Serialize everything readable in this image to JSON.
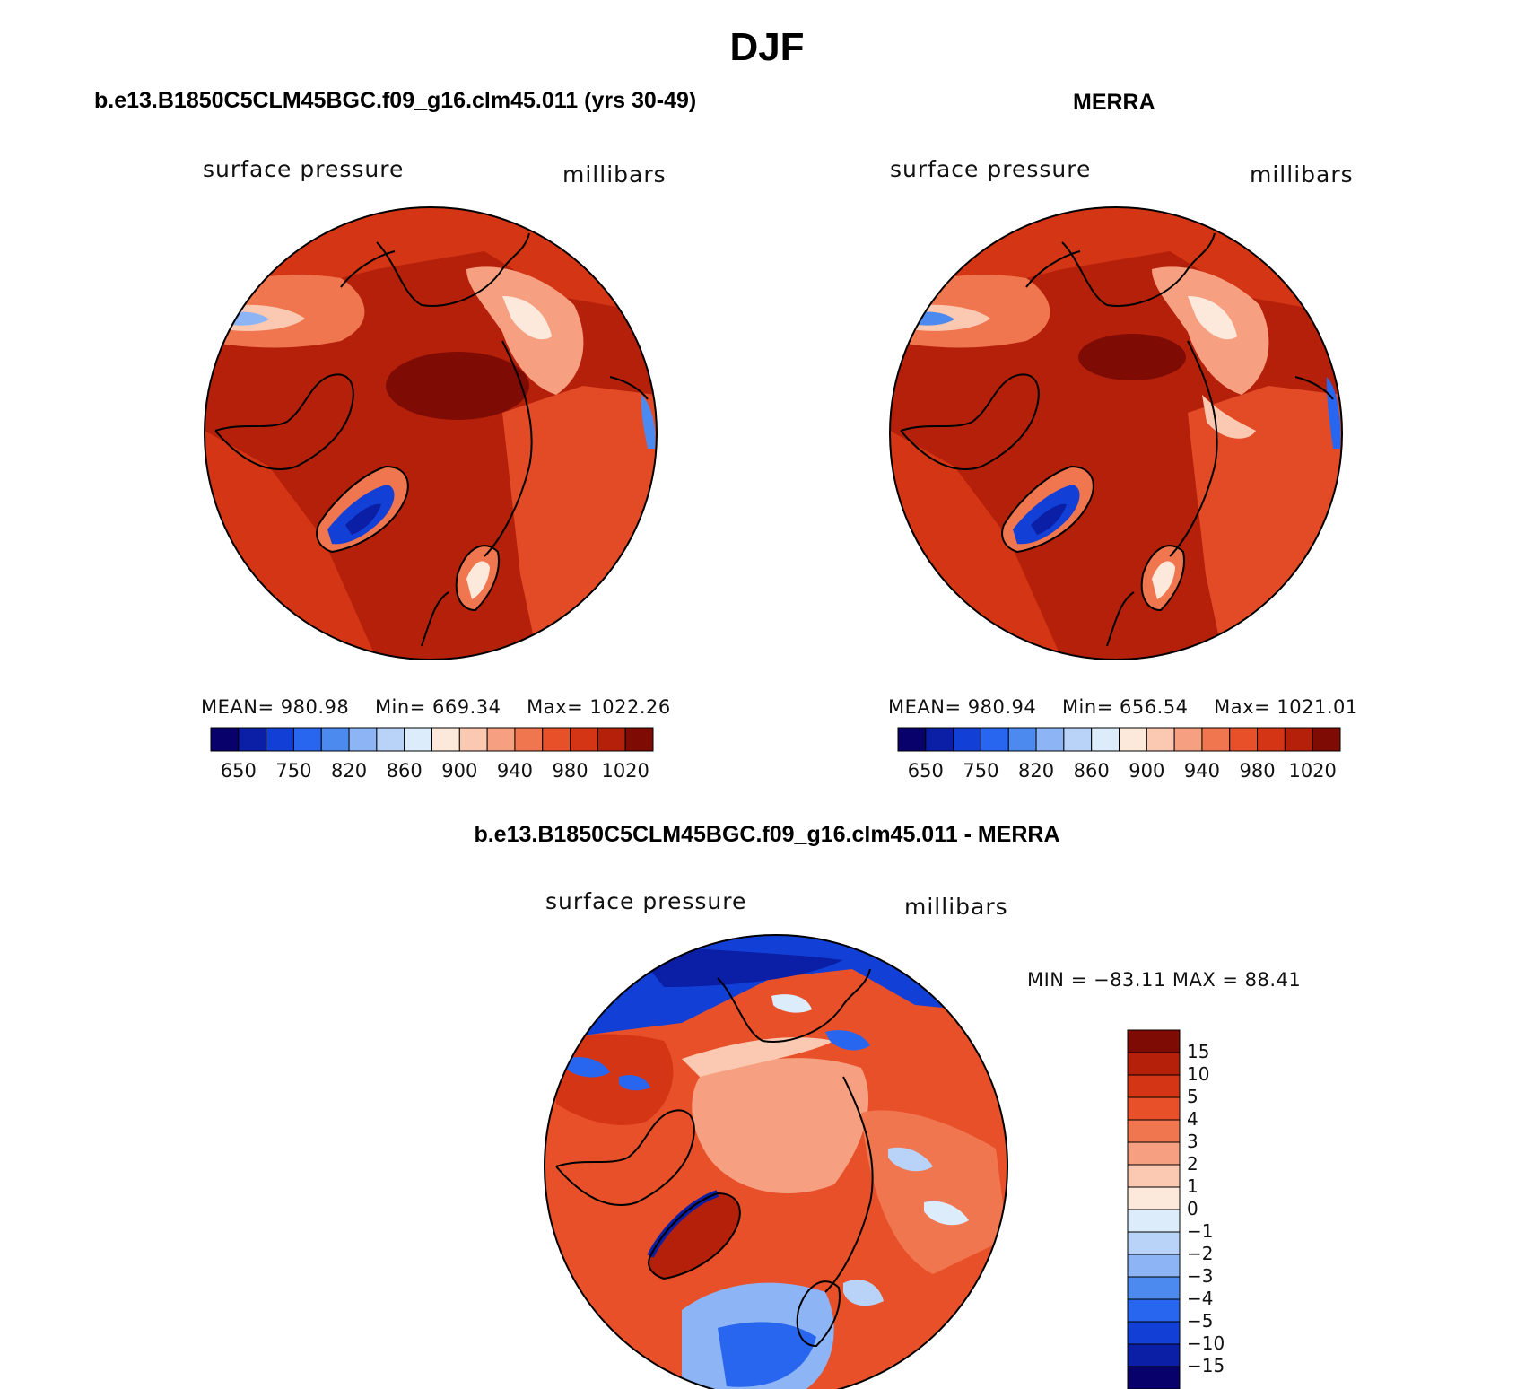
{
  "figure": {
    "title": "DJF"
  },
  "panels": [
    {
      "title": "b.e13.B1850C5CLM45BGC.f09_g16.clm45.011 (yrs 30-49)",
      "variable": "surface pressure",
      "units": "millibars",
      "stats": {
        "mean_label": "MEAN=",
        "mean": "980.98",
        "min_label": "Min=",
        "min": "669.34",
        "max_label": "Max=",
        "max": "1022.26"
      },
      "colorbar_ticks": [
        "650",
        "750",
        "820",
        "860",
        "900",
        "940",
        "980",
        "1020"
      ]
    },
    {
      "title": "MERRA",
      "variable": "surface pressure",
      "units": "millibars",
      "stats": {
        "mean_label": "MEAN=",
        "mean": "980.94",
        "min_label": "Min=",
        "min": "656.54",
        "max_label": "Max=",
        "max": "1021.01"
      },
      "colorbar_ticks": [
        "650",
        "750",
        "820",
        "860",
        "900",
        "940",
        "980",
        "1020"
      ]
    },
    {
      "title": "b.e13.B1850C5CLM45BGC.f09_g16.clm45.011 - MERRA",
      "variable": "surface pressure",
      "units": "millibars",
      "stats_text": "MIN = −83.11 MAX =  88.41",
      "colorbar_labels": [
        "15",
        "10",
        "5",
        "4",
        "3",
        "2",
        "1",
        "0",
        "−1",
        "−2",
        "−3",
        "−4",
        "−5",
        "−10",
        "−15"
      ]
    }
  ],
  "colors": {
    "abs_palette": [
      "#08016b",
      "#0a1fa6",
      "#1240d6",
      "#2866f0",
      "#4d8af0",
      "#8db4f5",
      "#b8d3f7",
      "#dcecfb",
      "#fde9dc",
      "#fbc8b1",
      "#f6a081",
      "#f0764f",
      "#e8502a",
      "#d43514",
      "#b5200b",
      "#7f0c04"
    ],
    "diff_palette": [
      "#7f0c04",
      "#b5200b",
      "#d43514",
      "#e8502a",
      "#f0764f",
      "#f6a081",
      "#fbc8b1",
      "#fde9dc",
      "#dcecfb",
      "#b8d3f7",
      "#8db4f5",
      "#4d8af0",
      "#2866f0",
      "#1240d6",
      "#0a1fa6",
      "#08016b"
    ]
  }
}
